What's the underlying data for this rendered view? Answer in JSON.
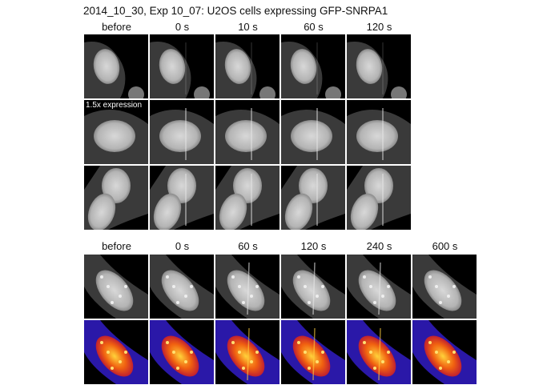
{
  "title": "2014_10_30, Exp 10_07: U2OS cells expressing GFP-SNRPA1",
  "top_grid": {
    "columns": [
      "before",
      "0 s",
      "10 s",
      "60 s",
      "120 s"
    ],
    "row_annotation": "1.5x expression",
    "rows": 3,
    "colormap": "grayscale"
  },
  "bottom_grid": {
    "columns": [
      "before",
      "0 s",
      "60 s",
      "120 s",
      "240 s",
      "600 s"
    ],
    "row_colormaps": [
      "grayscale",
      "fire"
    ]
  }
}
